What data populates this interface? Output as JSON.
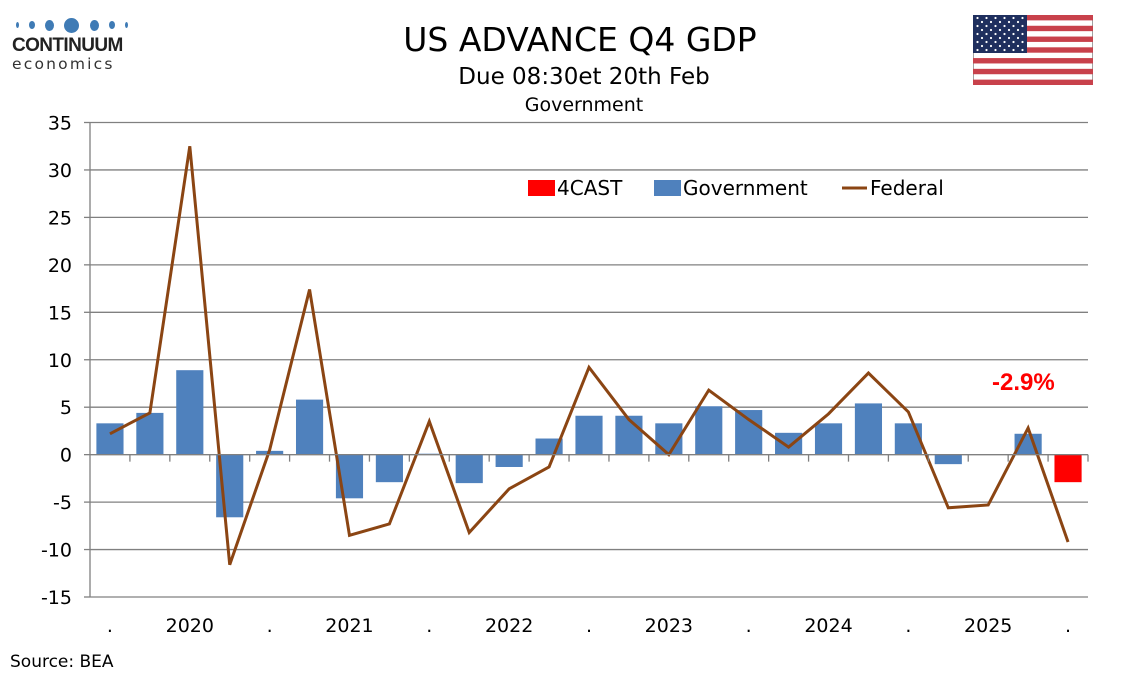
{
  "header": {
    "logo_brand": "CONTINUUM",
    "logo_sub": "economics",
    "title": "US ADVANCE Q4  GDP",
    "subtitle": "Due 08:30et 20th Feb",
    "flag_icon": "us-flag-icon"
  },
  "footer": {
    "source": "Source: BEA"
  },
  "colors": {
    "government": "#4f81bd",
    "forecast": "#ff0000",
    "federal": "#8b4513",
    "grid": "#808080",
    "annotation": "#ff0000"
  },
  "chart_data": {
    "type": "bar",
    "title": "Government",
    "xlabel": "",
    "ylabel": "",
    "ylim": [
      -15,
      35
    ],
    "yticks": [
      "35",
      "30",
      "25",
      "20",
      "15",
      "10",
      "5",
      "0",
      "-5",
      "-10",
      "-15"
    ],
    "ytick_values": [
      35,
      30,
      25,
      20,
      15,
      10,
      5,
      0,
      -5,
      -10,
      -15
    ],
    "grid": true,
    "legend_position": "top-right",
    "categories": [
      "2019Q4",
      "2020Q1",
      "2020Q2",
      "2020Q3",
      "2020Q4",
      "2021Q1",
      "2021Q2",
      "2021Q3",
      "2021Q4",
      "2022Q1",
      "2022Q2",
      "2022Q3",
      "2022Q4",
      "2023Q1",
      "2023Q2",
      "2023Q3",
      "2023Q4",
      "2024Q1",
      "2024Q2",
      "2024Q3",
      "2024Q4",
      "2025Q1",
      "2025Q2",
      "2025Q3",
      "2025Q4"
    ],
    "xtick_labels": [
      ".",
      "",
      "2020",
      "",
      ".",
      "",
      "2021",
      "",
      ".",
      "",
      "2022",
      "",
      ".",
      "",
      "2023",
      "",
      ".",
      "",
      "2024",
      "",
      ".",
      "",
      "2025",
      "",
      "."
    ],
    "series": [
      {
        "name": "4CAST",
        "type": "bar",
        "values": [
          null,
          null,
          null,
          null,
          null,
          null,
          null,
          null,
          null,
          null,
          null,
          null,
          null,
          null,
          null,
          null,
          null,
          null,
          null,
          null,
          null,
          null,
          null,
          null,
          -2.9
        ]
      },
      {
        "name": "Government",
        "type": "bar",
        "values": [
          3.3,
          4.4,
          8.9,
          -6.6,
          0.4,
          5.8,
          -4.6,
          -2.9,
          0.1,
          -3.0,
          -1.3,
          1.7,
          4.1,
          4.1,
          3.3,
          5.1,
          4.7,
          2.3,
          3.3,
          5.4,
          3.3,
          -1.0,
          null,
          2.2,
          null
        ]
      },
      {
        "name": "Federal",
        "type": "line",
        "values": [
          2.2,
          4.4,
          32.5,
          -11.6,
          0.5,
          17.4,
          -8.5,
          -7.3,
          3.5,
          -8.2,
          -3.6,
          -1.3,
          9.2,
          3.7,
          0.0,
          6.8,
          3.7,
          0.8,
          4.3,
          8.6,
          4.5,
          -5.6,
          -5.3,
          2.8,
          -9.2
        ]
      }
    ],
    "annotations": [
      {
        "text": "-2.9%",
        "category": "2025Q4"
      }
    ]
  }
}
